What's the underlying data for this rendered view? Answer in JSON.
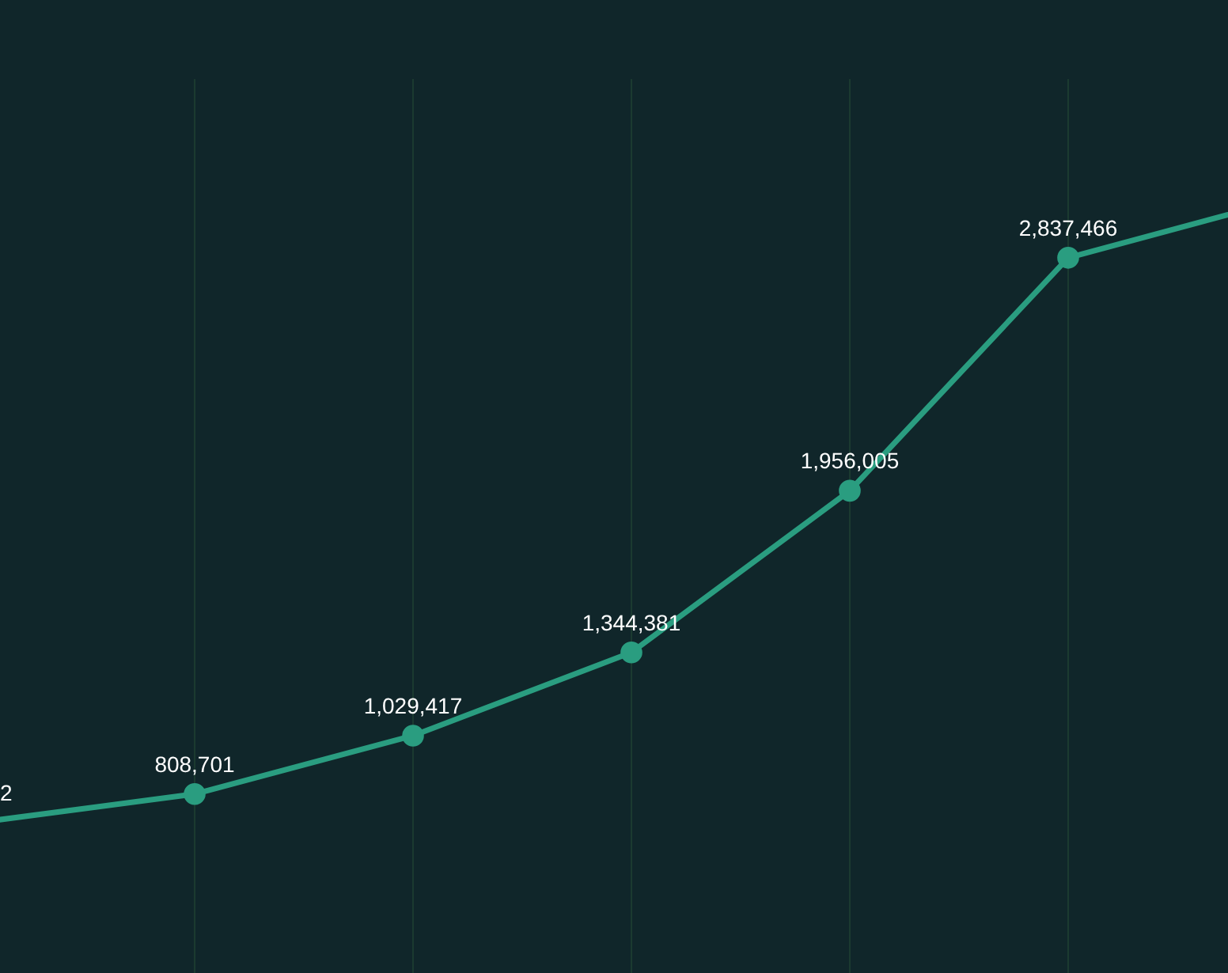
{
  "chart_data": {
    "type": "line",
    "categories": [
      null,
      null,
      null,
      null,
      null,
      null,
      null
    ],
    "tick_labels": false,
    "grid": "x",
    "marker": "circle",
    "line_style": "solid",
    "annotations": [
      "2"
    ],
    "series": [
      {
        "color": "#2a9d80",
        "values": [
          700000,
          808701,
          1029417,
          1344381,
          1956005,
          2837466,
          3060000
        ],
        "value_labels": [
          null,
          "808,701",
          "1,029,417",
          "1,344,381",
          "1,956,005",
          "2,837,466",
          null
        ]
      }
    ]
  }
}
